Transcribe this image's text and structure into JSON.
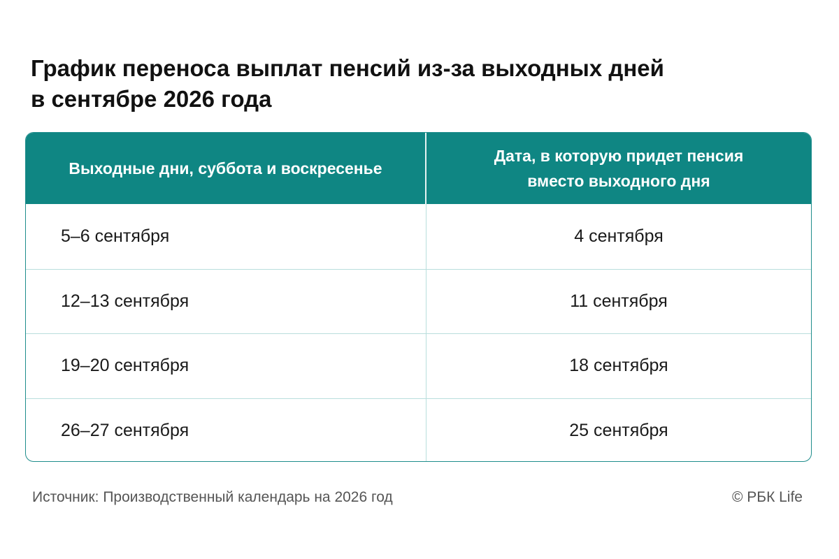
{
  "title": {
    "line1": "График переноса выплат пенсий из-за выходных дней",
    "line2": "в сентябре 2026 года"
  },
  "table": {
    "headers": {
      "weekend": "Выходные дни, суббота и воскресенье",
      "payment_line1": "Дата, в которую придет пенсия",
      "payment_line2": "вместо выходного дня"
    },
    "rows": [
      {
        "weekend": "5–6 сентября",
        "payment": "4 сентября"
      },
      {
        "weekend": "12–13 сентября",
        "payment": "11 сентября"
      },
      {
        "weekend": "19–20 сентября",
        "payment": "18 сентября"
      },
      {
        "weekend": "26–27 сентября",
        "payment": "25 сентября"
      }
    ]
  },
  "footer": {
    "source": "Источник: Производственный календарь на 2026 год",
    "copyright": "© РБК Life"
  },
  "colors": {
    "header_bg": "#0f8683",
    "border": "#1f8d8c",
    "row_divider": "#b9dedc"
  }
}
